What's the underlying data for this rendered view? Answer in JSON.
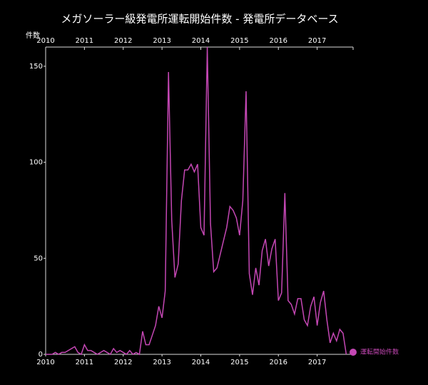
{
  "chart_data": {
    "type": "line",
    "title": "メガソーラー級発電所運転開始件数 - 発電所データベース",
    "y_label": "件数",
    "x": [
      2010,
      2010.083,
      2010.167,
      2010.25,
      2010.333,
      2010.417,
      2010.5,
      2010.583,
      2010.667,
      2010.75,
      2010.833,
      2010.917,
      2011,
      2011.083,
      2011.167,
      2011.25,
      2011.333,
      2011.417,
      2011.5,
      2011.583,
      2011.667,
      2011.75,
      2011.833,
      2011.917,
      2012,
      2012.083,
      2012.167,
      2012.25,
      2012.333,
      2012.417,
      2012.5,
      2012.583,
      2012.667,
      2012.75,
      2012.833,
      2012.917,
      2013,
      2013.083,
      2013.167,
      2013.25,
      2013.333,
      2013.417,
      2013.5,
      2013.583,
      2013.667,
      2013.75,
      2013.833,
      2013.917,
      2014,
      2014.083,
      2014.167,
      2014.25,
      2014.333,
      2014.417,
      2014.5,
      2014.583,
      2014.667,
      2014.75,
      2014.833,
      2014.917,
      2015,
      2015.083,
      2015.167,
      2015.25,
      2015.333,
      2015.417,
      2015.5,
      2015.583,
      2015.667,
      2015.75,
      2015.833,
      2015.917,
      2016,
      2016.083,
      2016.167,
      2016.25,
      2016.333,
      2016.417,
      2016.5,
      2016.583,
      2016.667,
      2016.75,
      2016.833,
      2016.917,
      2017,
      2017.083,
      2017.167,
      2017.25,
      2017.333,
      2017.417,
      2017.5,
      2017.583,
      2017.667,
      2017.75
    ],
    "series": [
      {
        "name": "運転開始件数",
        "color": "#c447b4",
        "values": [
          0,
          0,
          0,
          1,
          0,
          1,
          1,
          2,
          3,
          4,
          1,
          0,
          5,
          2,
          2,
          1,
          0,
          1,
          2,
          1,
          0,
          3,
          1,
          2,
          1,
          0,
          2,
          0,
          1,
          0,
          12,
          5,
          5,
          10,
          15,
          25,
          19,
          33,
          147,
          70,
          40,
          47,
          80,
          96,
          96,
          99,
          95,
          99,
          66,
          62,
          160,
          68,
          43,
          45,
          52,
          59,
          66,
          77,
          75,
          71,
          62,
          80,
          137,
          42,
          31,
          45,
          36,
          54,
          60,
          46,
          55,
          60,
          28,
          32,
          84,
          28,
          26,
          21,
          29,
          29,
          18,
          15,
          25,
          30,
          15,
          27,
          33,
          18,
          6,
          11,
          7,
          13,
          11,
          0
        ]
      }
    ],
    "xlim": [
      2010,
      2018
    ],
    "xticks": [
      2010,
      2011,
      2012,
      2013,
      2014,
      2015,
      2016,
      2017
    ],
    "ylim": [
      0,
      160
    ],
    "yticks": [
      0,
      50,
      100,
      150
    ],
    "legend": "bottom-right"
  }
}
